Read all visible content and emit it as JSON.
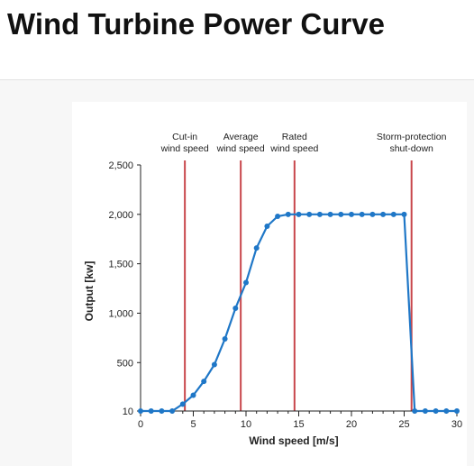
{
  "page": {
    "title": "Wind Turbine Power Curve"
  },
  "chart_data": {
    "type": "line",
    "title": "",
    "xlabel": "Wind speed [m/s]",
    "ylabel": "Output [kw]",
    "xlim": [
      0,
      30
    ],
    "ylim": [
      10,
      2500
    ],
    "x_ticks": [
      0,
      5,
      10,
      15,
      20,
      25,
      30
    ],
    "x_tick_labels": [
      "0",
      "5",
      "10",
      "15",
      "20",
      "25",
      "30"
    ],
    "y_ticks": [
      10,
      500,
      1000,
      1500,
      2000,
      2500
    ],
    "y_tick_labels": [
      "10",
      "500",
      "1,000",
      "1,500",
      "2,000",
      "2,500"
    ],
    "grid": false,
    "series": [
      {
        "color": "#1f77c7",
        "x": [
          0,
          1,
          2,
          3,
          4,
          5,
          6,
          7,
          8,
          9,
          10,
          11,
          12,
          13,
          14,
          15,
          16,
          17,
          18,
          19,
          20,
          21,
          22,
          23,
          24,
          25,
          26,
          27,
          28,
          29,
          30
        ],
        "y": [
          10,
          10,
          10,
          10,
          80,
          170,
          310,
          480,
          740,
          1050,
          1310,
          1660,
          1880,
          1980,
          2000,
          2000,
          2000,
          2000,
          2000,
          2000,
          2000,
          2000,
          2000,
          2000,
          2000,
          2000,
          10,
          10,
          10,
          10,
          10
        ]
      }
    ],
    "reference_lines": [
      {
        "x": 4.2,
        "label": [
          "Cut-in",
          "wind speed"
        ]
      },
      {
        "x": 9.5,
        "label": [
          "Average",
          "wind speed"
        ]
      },
      {
        "x": 14.6,
        "label": [
          "Rated",
          "wind speed"
        ]
      },
      {
        "x": 25.7,
        "label": [
          "Storm-protection",
          "shut-down"
        ]
      }
    ],
    "reference_line_color": "#c8464b"
  }
}
